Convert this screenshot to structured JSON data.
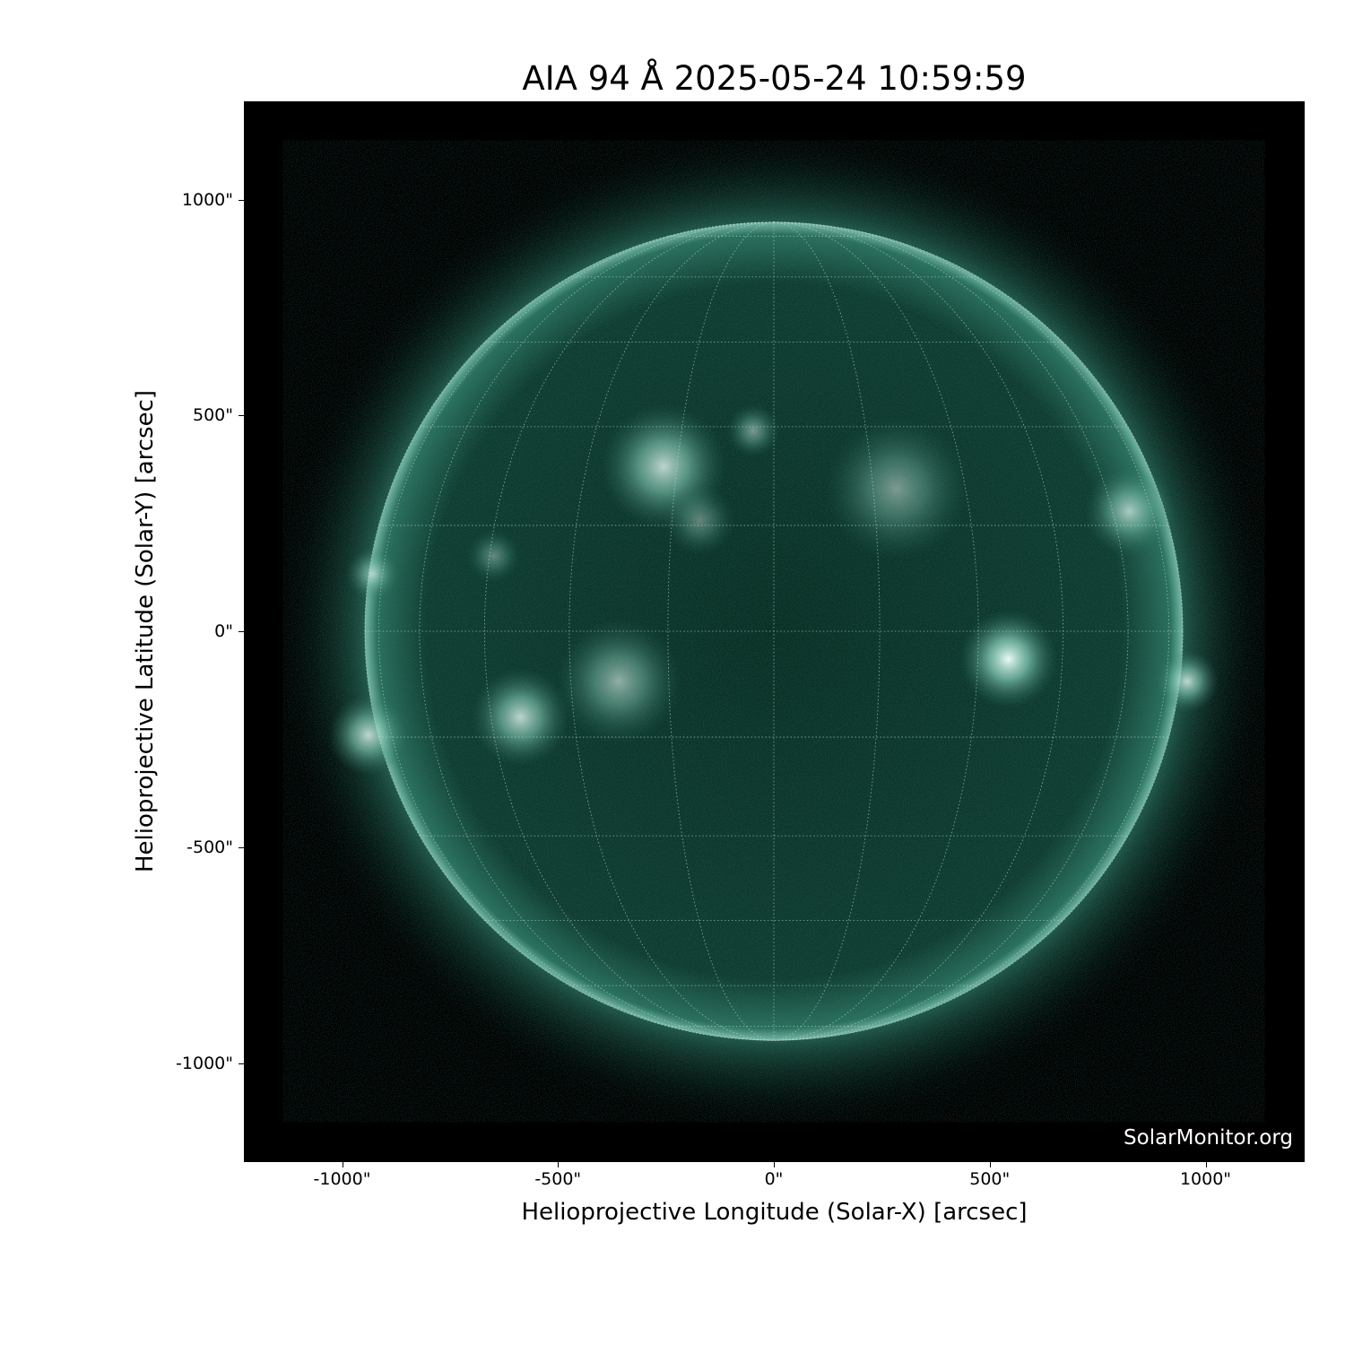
{
  "title": "AIA 94 Å 2025-05-24 10:59:59",
  "x_axis": {
    "label": "Helioprojective Longitude (Solar-X) [arcsec]",
    "ticks": [
      "-1000\"",
      "-500\"",
      "0\"",
      "500\"",
      "1000\""
    ],
    "tick_values": [
      -1000,
      -500,
      0,
      500,
      1000
    ]
  },
  "y_axis": {
    "label": "Helioprojective Latitude (Solar-Y) [arcsec]",
    "ticks": [
      "1000\"",
      "500\"",
      "0\"",
      "-500\"",
      "-1000\""
    ],
    "tick_values": [
      1000,
      500,
      0,
      -500,
      -1000
    ]
  },
  "credit": "SolarMonitor.org",
  "colors": {
    "background": "#000000",
    "disk": "#0d3a2e",
    "corona": "#2f7f6a",
    "bright": "#dff5ee"
  }
}
